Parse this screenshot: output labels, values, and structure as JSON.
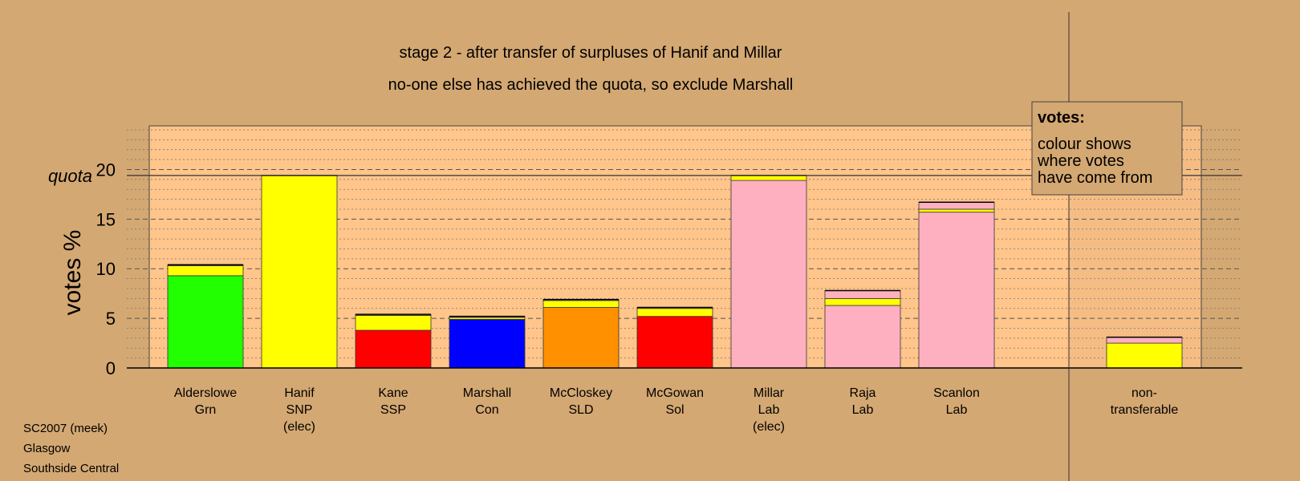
{
  "chart_data": {
    "type": "bar",
    "stacked": true,
    "title": "stage 2 - after transfer of surpluses of Hanif and Millar",
    "subtitle": "no-one else has achieved the quota, so exclude Marshall",
    "ylabel": "votes %",
    "ylim": [
      0,
      24.4
    ],
    "yticks": [
      "0",
      "5",
      "10",
      "15",
      "20"
    ],
    "quota": {
      "label": "quota",
      "value": 19.4
    },
    "grid": true,
    "legend": {
      "position": "top-right",
      "title": "votes:",
      "lines": [
        "colour shows",
        "where votes",
        "have come from"
      ]
    },
    "categories": [
      {
        "lines": [
          "Alderslowe",
          "Grn"
        ]
      },
      {
        "lines": [
          "Hanif",
          "SNP",
          "(elec)"
        ]
      },
      {
        "lines": [
          "Kane",
          "SSP"
        ]
      },
      {
        "lines": [
          "Marshall",
          "Con"
        ]
      },
      {
        "lines": [
          "McCloskey",
          "SLD"
        ]
      },
      {
        "lines": [
          "McGowan",
          "Sol"
        ]
      },
      {
        "lines": [
          "Millar",
          "Lab",
          "(elec)"
        ]
      },
      {
        "lines": [
          "Raja",
          "Lab"
        ]
      },
      {
        "lines": [
          "Scanlon",
          "Lab"
        ]
      },
      {
        "lines": [
          "non-",
          "transferable"
        ]
      }
    ],
    "source_colors": {
      "Grn": "#22ff00",
      "SNP": "#ffff00",
      "SSP": "#ff0000",
      "Con": "#0000ff",
      "SLD": "#ff9100",
      "Sol": "#ff0000",
      "Lab": "#ffb0c0"
    },
    "stacks": [
      [
        {
          "source": "Grn",
          "value": 9.3
        },
        {
          "source": "SNP",
          "value": 1.0
        },
        {
          "source": "Lab",
          "value": 0.1
        }
      ],
      [
        {
          "source": "SNP",
          "value": 19.4
        }
      ],
      [
        {
          "source": "SSP",
          "value": 3.8
        },
        {
          "source": "SNP",
          "value": 1.5
        },
        {
          "source": "Lab",
          "value": 0.1
        }
      ],
      [
        {
          "source": "Con",
          "value": 4.9
        },
        {
          "source": "SNP",
          "value": 0.2
        },
        {
          "source": "Lab",
          "value": 0.1
        }
      ],
      [
        {
          "source": "SLD",
          "value": 6.1
        },
        {
          "source": "SNP",
          "value": 0.7
        },
        {
          "source": "Lab",
          "value": 0.1
        }
      ],
      [
        {
          "source": "Sol",
          "value": 5.2
        },
        {
          "source": "SNP",
          "value": 0.8
        },
        {
          "source": "Lab",
          "value": 0.1
        }
      ],
      [
        {
          "source": "Lab",
          "value": 18.9
        },
        {
          "source": "SNP",
          "value": 0.5
        }
      ],
      [
        {
          "source": "Lab",
          "value": 6.3
        },
        {
          "source": "SNP",
          "value": 0.7
        },
        {
          "source": "Lab",
          "value": 0.8
        }
      ],
      [
        {
          "source": "Lab",
          "value": 15.7
        },
        {
          "source": "SNP",
          "value": 0.3
        },
        {
          "source": "Lab",
          "value": 0.7
        }
      ],
      [
        {
          "source": "SNP",
          "value": 2.5
        },
        {
          "source": "Lab",
          "value": 0.6
        }
      ]
    ]
  },
  "footer": {
    "lines": [
      "SC2007 (meek)",
      "Glasgow",
      "Southside Central"
    ]
  }
}
